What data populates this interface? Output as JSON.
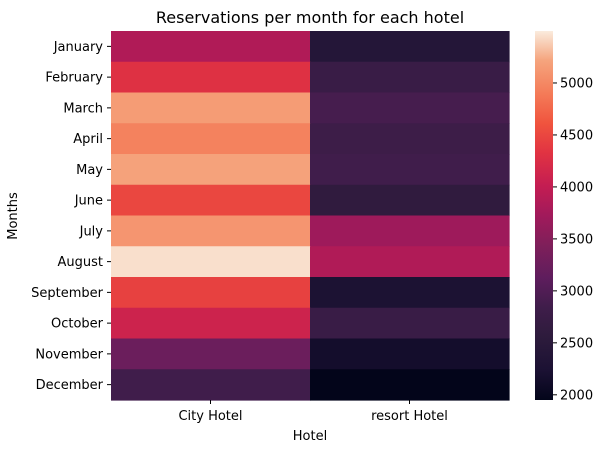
{
  "chart_data": {
    "type": "heatmap",
    "title": "Reservations per month for each hotel",
    "xlabel": "Hotel",
    "ylabel": "Months",
    "x_categories": [
      "City Hotel",
      "resort Hotel"
    ],
    "y_categories": [
      "January",
      "February",
      "March",
      "April",
      "May",
      "June",
      "July",
      "August",
      "September",
      "October",
      "November",
      "December"
    ],
    "values": [
      [
        3850,
        2400
      ],
      [
        4300,
        2750
      ],
      [
        5150,
        2900
      ],
      [
        4950,
        2800
      ],
      [
        5200,
        2850
      ],
      [
        4500,
        2600
      ],
      [
        5100,
        3700
      ],
      [
        5450,
        3850
      ],
      [
        4450,
        2250
      ],
      [
        4100,
        2750
      ],
      [
        3250,
        2150
      ],
      [
        2850,
        1950
      ]
    ],
    "colorbar": {
      "min": 1950,
      "max": 5500,
      "ticks": [
        2000,
        2500,
        3000,
        3500,
        4000,
        4500,
        5000
      ]
    }
  }
}
